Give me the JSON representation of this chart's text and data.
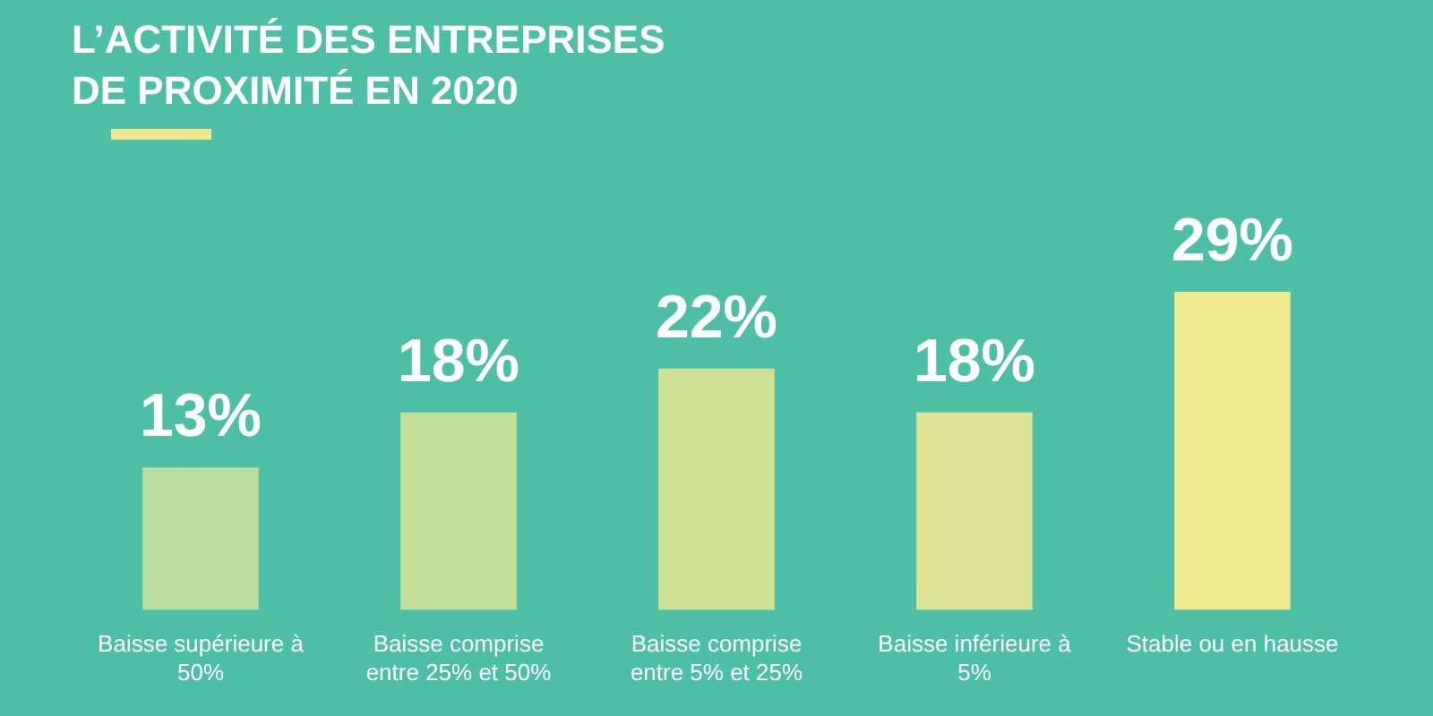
{
  "chart_data": {
    "type": "bar",
    "title": "L’ACTIVITÉ DES ENTREPRISES\nDE PROXIMITÉ EN 2020",
    "categories": [
      "Baisse supérieure à 50%",
      "Baisse comprise entre 25% et 50%",
      "Baisse comprise entre 5% et 25%",
      "Baisse inférieure à 5%",
      "Stable ou en hausse"
    ],
    "values": [
      13,
      18,
      22,
      18,
      29
    ],
    "value_labels": [
      "13%",
      "18%",
      "22%",
      "18%",
      "29%"
    ],
    "colors": [
      "#b7dc9b",
      "#c3de97",
      "#cfe195",
      "#dde493",
      "#eee98d"
    ],
    "grid": false,
    "legend": false
  }
}
